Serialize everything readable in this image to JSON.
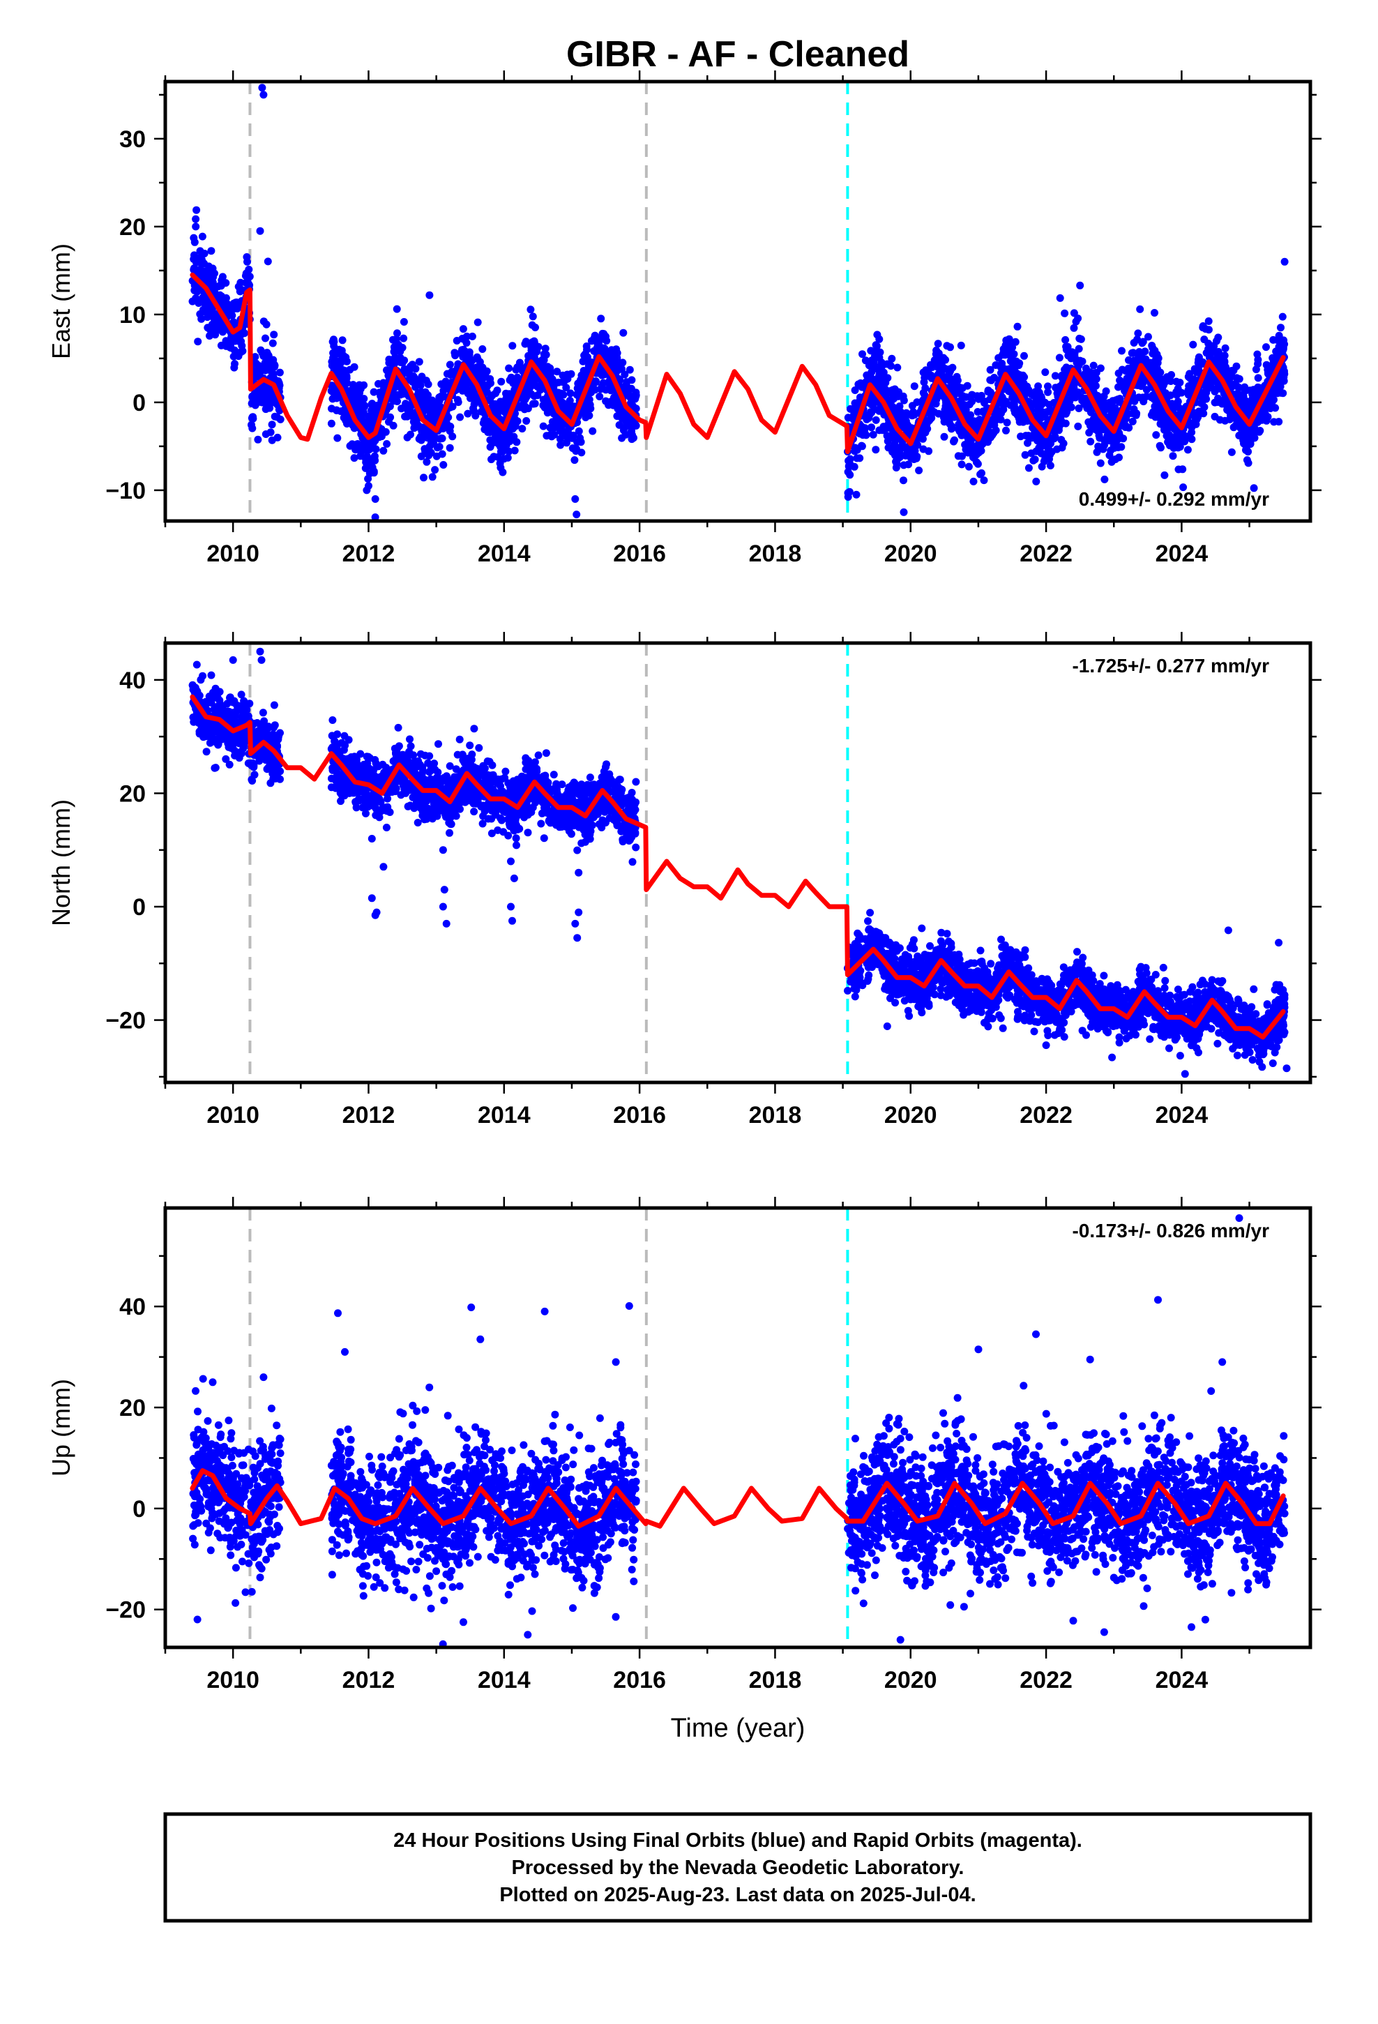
{
  "title": "GIBR  - AF - Cleaned",
  "xlabel": "Time (year)",
  "footer": [
    "24 Hour Positions Using Final Orbits (blue) and Rapid Orbits (magenta).",
    "Processed by the Nevada Geodetic Laboratory.",
    "Plotted on 2025-Aug-23. Last data on 2025-Jul-04."
  ],
  "colors": {
    "observations": "#0000ff",
    "model": "#ff0000",
    "step_gray": "#bbbbbb",
    "step_cyan": "#00ffff"
  },
  "chart_data": [
    {
      "type": "scatter",
      "ylabel": "East (mm)",
      "rate": "0.499+/- 0.292 mm/yr",
      "xlim": [
        2009.0,
        2025.9
      ],
      "ylim": [
        -13.5,
        36.5
      ],
      "xticks": [
        2010,
        2012,
        2014,
        2016,
        2018,
        2020,
        2022,
        2024
      ],
      "yticks": [
        -10,
        0,
        10,
        20,
        30
      ],
      "steps": [
        {
          "x": 2010.25,
          "color": "gray"
        },
        {
          "x": 2016.1,
          "color": "gray"
        },
        {
          "x": 2019.07,
          "color": "cyan"
        }
      ],
      "model": [
        [
          2009.4,
          14.5
        ],
        [
          2009.6,
          13
        ],
        [
          2009.8,
          10.5
        ],
        [
          2010.0,
          8
        ],
        [
          2010.1,
          8.5
        ],
        [
          2010.2,
          12.5
        ],
        [
          2010.25,
          12.8
        ],
        [
          2010.26,
          1.5
        ],
        [
          2010.45,
          2.6
        ],
        [
          2010.6,
          2
        ],
        [
          2010.8,
          -1.5
        ],
        [
          2011.0,
          -4
        ],
        [
          2011.1,
          -4.2
        ],
        [
          2011.3,
          0.5
        ],
        [
          2011.45,
          3.3
        ],
        [
          2011.6,
          1.5
        ],
        [
          2011.8,
          -2
        ],
        [
          2012.0,
          -4
        ],
        [
          2012.1,
          -3.5
        ],
        [
          2012.4,
          3.8
        ],
        [
          2012.6,
          1.5
        ],
        [
          2012.8,
          -2
        ],
        [
          2013.0,
          -3.2
        ],
        [
          2013.4,
          4.3
        ],
        [
          2013.6,
          2
        ],
        [
          2013.8,
          -1.5
        ],
        [
          2014.0,
          -3
        ],
        [
          2014.4,
          4.6
        ],
        [
          2014.6,
          2.5
        ],
        [
          2014.8,
          -1
        ],
        [
          2015.0,
          -2.5
        ],
        [
          2015.4,
          5.2
        ],
        [
          2015.6,
          3
        ],
        [
          2015.8,
          -0.5
        ],
        [
          2016.0,
          -2
        ],
        [
          2016.09,
          -2.3
        ],
        [
          2016.1,
          -4
        ],
        [
          2016.4,
          3.2
        ],
        [
          2016.6,
          1
        ],
        [
          2016.8,
          -2.5
        ],
        [
          2017.0,
          -4
        ],
        [
          2017.4,
          3.5
        ],
        [
          2017.6,
          1.5
        ],
        [
          2017.8,
          -2
        ],
        [
          2018.0,
          -3.4
        ],
        [
          2018.4,
          4.1
        ],
        [
          2018.6,
          2
        ],
        [
          2018.8,
          -1.5
        ],
        [
          2019.06,
          -2.7
        ],
        [
          2019.07,
          -5.6
        ],
        [
          2019.4,
          2
        ],
        [
          2019.6,
          0
        ],
        [
          2019.8,
          -3
        ],
        [
          2020.0,
          -4.7
        ],
        [
          2020.4,
          2.7
        ],
        [
          2020.6,
          0.5
        ],
        [
          2020.8,
          -2.5
        ],
        [
          2021.0,
          -4.2
        ],
        [
          2021.4,
          3.2
        ],
        [
          2021.6,
          1
        ],
        [
          2021.8,
          -2
        ],
        [
          2022.0,
          -3.8
        ],
        [
          2022.4,
          3.7
        ],
        [
          2022.6,
          1.5
        ],
        [
          2022.8,
          -1.5
        ],
        [
          2023.0,
          -3.3
        ],
        [
          2023.4,
          4.2
        ],
        [
          2023.6,
          2
        ],
        [
          2023.8,
          -1
        ],
        [
          2024.0,
          -2.9
        ],
        [
          2024.4,
          4.6
        ],
        [
          2024.6,
          2.5
        ],
        [
          2024.8,
          -0.5
        ],
        [
          2025.0,
          -2.5
        ],
        [
          2025.5,
          5.1
        ]
      ],
      "scatter_spec": {
        "segments": [
          [
            2009.4,
            2010.25
          ],
          [
            2010.26,
            2010.7
          ],
          [
            2011.45,
            2015.95
          ],
          [
            2019.07,
            2025.52
          ]
        ],
        "spread": 2.2,
        "seed": 11,
        "outliers": [
          [
            2010.43,
            35.8
          ],
          [
            2010.45,
            35.0
          ],
          [
            2010.4,
            19.5
          ],
          [
            2012.9,
            12.2
          ],
          [
            2022.5,
            13.3
          ],
          [
            2025.52,
            16.0
          ],
          [
            2012.1,
            -11.0
          ],
          [
            2019.9,
            -12.5
          ],
          [
            2015.05,
            -11.0
          ],
          [
            2012.0,
            -9.5
          ],
          [
            2019.2,
            -10.5
          ],
          [
            2009.45,
            20
          ]
        ]
      }
    },
    {
      "type": "scatter",
      "ylabel": "North (mm)",
      "rate": "-1.725+/- 0.277 mm/yr",
      "xlim": [
        2009.0,
        2025.9
      ],
      "ylim": [
        -31.0,
        46.5
      ],
      "xticks": [
        2010,
        2012,
        2014,
        2016,
        2018,
        2020,
        2022,
        2024
      ],
      "yticks": [
        -20,
        0,
        20,
        40
      ],
      "steps": [
        {
          "x": 2010.25,
          "color": "gray"
        },
        {
          "x": 2016.1,
          "color": "gray"
        },
        {
          "x": 2019.07,
          "color": "cyan"
        }
      ],
      "model": [
        [
          2009.4,
          37
        ],
        [
          2009.6,
          33.5
        ],
        [
          2009.8,
          33
        ],
        [
          2010.0,
          31
        ],
        [
          2010.2,
          32
        ],
        [
          2010.25,
          32.5
        ],
        [
          2010.26,
          27
        ],
        [
          2010.45,
          29
        ],
        [
          2010.6,
          27.5
        ],
        [
          2010.8,
          24.5
        ],
        [
          2011.0,
          24.5
        ],
        [
          2011.2,
          22.5
        ],
        [
          2011.45,
          27
        ],
        [
          2011.6,
          25
        ],
        [
          2011.8,
          22
        ],
        [
          2012.0,
          21.5
        ],
        [
          2012.2,
          20
        ],
        [
          2012.45,
          25
        ],
        [
          2012.6,
          23
        ],
        [
          2012.8,
          20.5
        ],
        [
          2013.0,
          20.5
        ],
        [
          2013.2,
          18.5
        ],
        [
          2013.45,
          23.5
        ],
        [
          2013.6,
          21.5
        ],
        [
          2013.8,
          19
        ],
        [
          2014.0,
          19
        ],
        [
          2014.2,
          17.5
        ],
        [
          2014.45,
          22
        ],
        [
          2014.6,
          20
        ],
        [
          2014.8,
          17.5
        ],
        [
          2015.0,
          17.5
        ],
        [
          2015.2,
          16
        ],
        [
          2015.45,
          20.5
        ],
        [
          2015.6,
          18.5
        ],
        [
          2015.8,
          15.5
        ],
        [
          2016.09,
          14
        ],
        [
          2016.1,
          3
        ],
        [
          2016.4,
          8
        ],
        [
          2016.6,
          5
        ],
        [
          2016.8,
          3.5
        ],
        [
          2017.0,
          3.5
        ],
        [
          2017.2,
          1.5
        ],
        [
          2017.45,
          6.5
        ],
        [
          2017.6,
          4
        ],
        [
          2017.8,
          2
        ],
        [
          2018.0,
          2
        ],
        [
          2018.2,
          0
        ],
        [
          2018.45,
          4.5
        ],
        [
          2018.6,
          2.5
        ],
        [
          2018.8,
          0
        ],
        [
          2019.06,
          0
        ],
        [
          2019.07,
          -12
        ],
        [
          2019.45,
          -7.5
        ],
        [
          2019.6,
          -9.5
        ],
        [
          2019.8,
          -12.5
        ],
        [
          2020.0,
          -12.5
        ],
        [
          2020.2,
          -14
        ],
        [
          2020.45,
          -9.5
        ],
        [
          2020.6,
          -11.5
        ],
        [
          2020.8,
          -14
        ],
        [
          2021.0,
          -14
        ],
        [
          2021.2,
          -16
        ],
        [
          2021.45,
          -11.5
        ],
        [
          2021.6,
          -13.5
        ],
        [
          2021.8,
          -16
        ],
        [
          2022.0,
          -16
        ],
        [
          2022.2,
          -18
        ],
        [
          2022.45,
          -13
        ],
        [
          2022.6,
          -15
        ],
        [
          2022.8,
          -18
        ],
        [
          2023.0,
          -18
        ],
        [
          2023.2,
          -19.5
        ],
        [
          2023.45,
          -15
        ],
        [
          2023.6,
          -17
        ],
        [
          2023.8,
          -19.5
        ],
        [
          2024.0,
          -19.5
        ],
        [
          2024.2,
          -21
        ],
        [
          2024.45,
          -16.5
        ],
        [
          2024.6,
          -18.5
        ],
        [
          2024.8,
          -21.5
        ],
        [
          2025.0,
          -21.5
        ],
        [
          2025.2,
          -23
        ],
        [
          2025.5,
          -18.5
        ]
      ],
      "scatter_spec": {
        "segments": [
          [
            2009.4,
            2010.25
          ],
          [
            2010.26,
            2010.7
          ],
          [
            2011.45,
            2015.95
          ],
          [
            2019.07,
            2025.52
          ]
        ],
        "spread": 2.4,
        "seed": 23,
        "outliers": [
          [
            2010.4,
            45.0
          ],
          [
            2010.42,
            43.5
          ],
          [
            2010.0,
            43.5
          ],
          [
            2012.05,
            1.5
          ],
          [
            2012.1,
            -1.5
          ],
          [
            2012.12,
            -1.0
          ],
          [
            2013.1,
            0.0
          ],
          [
            2013.15,
            -3.0
          ],
          [
            2013.12,
            3.0
          ],
          [
            2014.1,
            0.0
          ],
          [
            2014.12,
            -2.5
          ],
          [
            2014.15,
            5.0
          ],
          [
            2015.05,
            -3.0
          ],
          [
            2015.08,
            -5.5
          ],
          [
            2015.1,
            -1.0
          ],
          [
            2012.05,
            12
          ],
          [
            2013.1,
            10
          ],
          [
            2014.1,
            8
          ],
          [
            2015.1,
            6
          ],
          [
            2024.05,
            -29.5
          ],
          [
            2025.55,
            -28.5
          ]
        ]
      }
    },
    {
      "type": "scatter",
      "ylabel": "Up (mm)",
      "rate": "-0.173+/- 0.826 mm/yr",
      "xlim": [
        2009.0,
        2025.9
      ],
      "ylim": [
        -27.5,
        59.5
      ],
      "xticks": [
        2010,
        2012,
        2014,
        2016,
        2018,
        2020,
        2022,
        2024
      ],
      "yticks": [
        -20,
        0,
        20,
        40
      ],
      "steps": [
        {
          "x": 2010.25,
          "color": "gray"
        },
        {
          "x": 2016.1,
          "color": "gray"
        },
        {
          "x": 2019.07,
          "color": "cyan"
        }
      ],
      "model": [
        [
          2009.4,
          4
        ],
        [
          2009.55,
          7.5
        ],
        [
          2009.7,
          6.5
        ],
        [
          2009.9,
          2
        ],
        [
          2010.1,
          0
        ],
        [
          2010.25,
          -1
        ],
        [
          2010.26,
          -3
        ],
        [
          2010.5,
          2
        ],
        [
          2010.65,
          4.5
        ],
        [
          2010.8,
          1.5
        ],
        [
          2011.0,
          -3
        ],
        [
          2011.3,
          -2
        ],
        [
          2011.5,
          4
        ],
        [
          2011.7,
          2
        ],
        [
          2011.9,
          -2
        ],
        [
          2012.1,
          -3
        ],
        [
          2012.4,
          -1.5
        ],
        [
          2012.65,
          4
        ],
        [
          2012.9,
          0
        ],
        [
          2013.1,
          -3
        ],
        [
          2013.4,
          -1.5
        ],
        [
          2013.65,
          4
        ],
        [
          2013.9,
          0
        ],
        [
          2014.1,
          -3
        ],
        [
          2014.4,
          -1.5
        ],
        [
          2014.65,
          4
        ],
        [
          2014.9,
          0
        ],
        [
          2015.1,
          -3.5
        ],
        [
          2015.4,
          -1.5
        ],
        [
          2015.65,
          4
        ],
        [
          2015.9,
          0
        ],
        [
          2016.09,
          -3
        ],
        [
          2016.1,
          -2.5
        ],
        [
          2016.3,
          -3.5
        ],
        [
          2016.65,
          4
        ],
        [
          2016.9,
          0
        ],
        [
          2017.1,
          -3
        ],
        [
          2017.4,
          -1.5
        ],
        [
          2017.65,
          4
        ],
        [
          2017.9,
          0
        ],
        [
          2018.1,
          -2.5
        ],
        [
          2018.4,
          -2
        ],
        [
          2018.65,
          4
        ],
        [
          2018.9,
          0
        ],
        [
          2019.06,
          -2
        ],
        [
          2019.07,
          -2.5
        ],
        [
          2019.3,
          -2.5
        ],
        [
          2019.65,
          5
        ],
        [
          2019.9,
          1
        ],
        [
          2020.1,
          -2.5
        ],
        [
          2020.4,
          -1.5
        ],
        [
          2020.65,
          5
        ],
        [
          2020.9,
          1
        ],
        [
          2021.1,
          -3
        ],
        [
          2021.4,
          -1
        ],
        [
          2021.65,
          5
        ],
        [
          2021.9,
          1
        ],
        [
          2022.1,
          -3
        ],
        [
          2022.4,
          -1.5
        ],
        [
          2022.65,
          5
        ],
        [
          2022.9,
          1
        ],
        [
          2023.1,
          -3
        ],
        [
          2023.4,
          -1.5
        ],
        [
          2023.65,
          5
        ],
        [
          2023.9,
          1
        ],
        [
          2024.1,
          -3
        ],
        [
          2024.4,
          -1.5
        ],
        [
          2024.65,
          5
        ],
        [
          2024.9,
          1
        ],
        [
          2025.1,
          -3
        ],
        [
          2025.3,
          -3
        ],
        [
          2025.5,
          2.5
        ]
      ],
      "scatter_spec": {
        "segments": [
          [
            2009.4,
            2010.25
          ],
          [
            2010.26,
            2010.7
          ],
          [
            2011.45,
            2015.95
          ],
          [
            2019.07,
            2025.52
          ]
        ],
        "spread": 6.0,
        "seed": 37,
        "outliers": [
          [
            2024.85,
            57.5
          ],
          [
            2014.6,
            39.0
          ],
          [
            2021.85,
            34.5
          ],
          [
            2013.65,
            33.5
          ],
          [
            2011.65,
            31.0
          ],
          [
            2022.65,
            29.5
          ],
          [
            2024.6,
            29.0
          ],
          [
            2015.65,
            29.0
          ],
          [
            2009.7,
            25.0
          ],
          [
            2019.85,
            -26.0
          ],
          [
            2014.35,
            -25.0
          ],
          [
            2024.35,
            -22.0
          ],
          [
            2013.4,
            -22.5
          ],
          [
            2010.45,
            26.0
          ]
        ]
      }
    }
  ]
}
